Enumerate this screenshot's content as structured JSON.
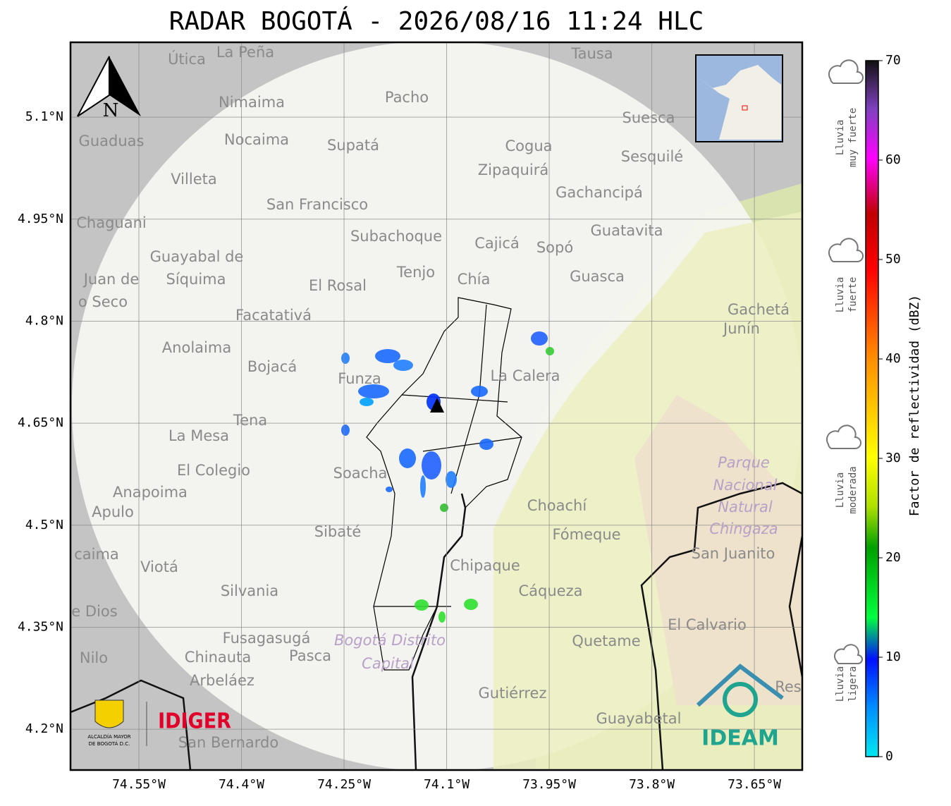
{
  "title": "RADAR BOGOTÁ - 2026/08/16 11:24 HLC",
  "map": {
    "xlim": [
      -74.65,
      -73.58
    ],
    "ylim": [
      4.14,
      5.21
    ],
    "xticks": [
      {
        "value": -74.55,
        "label": "74.55°W"
      },
      {
        "value": -74.4,
        "label": "74.4°W"
      },
      {
        "value": -74.25,
        "label": "74.25°W"
      },
      {
        "value": -74.1,
        "label": "74.1°W"
      },
      {
        "value": -73.95,
        "label": "73.95°W"
      },
      {
        "value": -73.8,
        "label": "73.8°W"
      },
      {
        "value": -73.65,
        "label": "73.65°W"
      }
    ],
    "yticks": [
      {
        "value": 5.1,
        "label": "5.1°N"
      },
      {
        "value": 4.95,
        "label": "4.95°N"
      },
      {
        "value": 4.8,
        "label": "4.8°N"
      },
      {
        "value": 4.65,
        "label": "4.65°N"
      },
      {
        "value": 4.5,
        "label": "4.5°N"
      },
      {
        "value": 4.35,
        "label": "4.35°N"
      },
      {
        "value": 4.2,
        "label": "4.2°N"
      }
    ],
    "north": "N",
    "places": [
      "La Peña",
      "Útica",
      "Tausa",
      "Pacho",
      "Nimaima",
      "Suesca",
      "Guaduas",
      "Nocaima",
      "Supatá",
      "Cogua",
      "Sesquilé",
      "Zipaquirá",
      "Villeta",
      "Gachancipá",
      "San Francisco",
      "Chaguani",
      "Guatavita",
      "Subachoque",
      "Cajicá",
      "Sopó",
      "Guayabal de",
      "Síquima",
      "Juan de",
      "o Seco",
      "Tenjo",
      "Chía",
      "Guasca",
      "El Rosal",
      "Gachetá",
      "Facatativá",
      "Junín",
      "Anolaima",
      "Bojacá",
      "La Calera",
      "Funza",
      "Tena",
      "La Mesa",
      "El Colegio",
      "Soacha",
      "Anapoima",
      "Apulo",
      "Choachí",
      "Sibaté",
      "Fómeque",
      "caima",
      "San Juanito",
      "Viotá",
      "Chipaque",
      "Silvania",
      "Cáqueza",
      "e Dios",
      "El Calvario",
      "Fusagasugá",
      "Quetame",
      "Nilo",
      "Chinauta",
      "Pasca",
      "Arbeláez",
      "Gutiérrez",
      "Guayabetal",
      "San Bernardo",
      "Res"
    ],
    "protected": [
      "Parque",
      "Nacional",
      "Natural",
      "Chingaza",
      "Bogotá Distrito",
      "Capital"
    ]
  },
  "colorbar": {
    "label": "Factor de reflectividad (dBZ)",
    "lim": [
      0,
      70
    ],
    "ticks": [
      0,
      10,
      20,
      30,
      40,
      50,
      60,
      70
    ]
  },
  "rain_classes": [
    [
      "Lluvia",
      "muy fuerte"
    ],
    [
      "Lluvia",
      "fuerte"
    ],
    [
      "Lluvia",
      "moderada"
    ],
    [
      "Lluvia",
      "ligera"
    ]
  ],
  "logos": {
    "alcaldia": [
      "ALCALDÍA MAYOR",
      "DE BOGOTÁ D.C."
    ],
    "idiger": "IDIGER",
    "ideam": "IDEAM"
  }
}
